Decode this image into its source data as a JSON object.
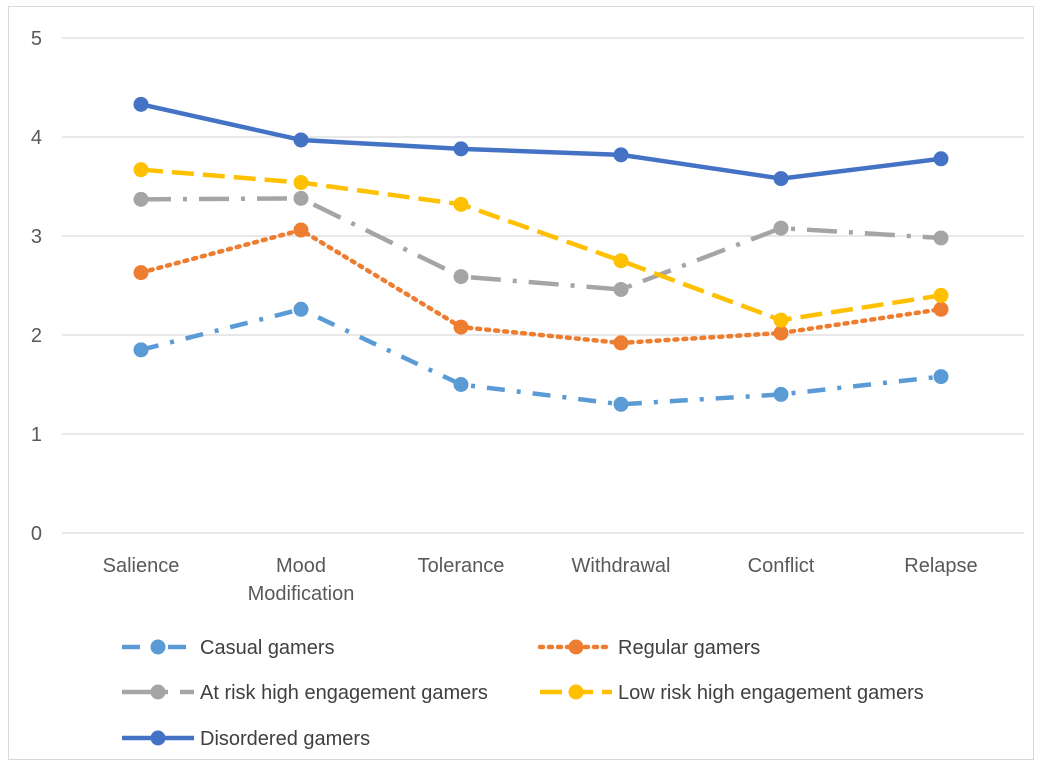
{
  "chart_data": {
    "type": "line",
    "categories": [
      [
        "Salience"
      ],
      [
        "Mood",
        "Modification"
      ],
      [
        "Tolerance"
      ],
      [
        "Withdrawal"
      ],
      [
        "Conflict"
      ],
      [
        "Relapse"
      ]
    ],
    "ylim": [
      0,
      5
    ],
    "yticks": [
      "0",
      "1",
      "2",
      "3",
      "4",
      "5"
    ],
    "grid": true,
    "legend": "bottom",
    "series": [
      {
        "name": "Casual gamers",
        "color": "#5b9bd5",
        "dash": "dash-dot",
        "values": [
          1.85,
          2.26,
          1.5,
          1.3,
          1.4,
          1.58
        ]
      },
      {
        "name": "Regular gamers",
        "color": "#ed7d31",
        "dash": "dot",
        "values": [
          2.63,
          3.06,
          2.08,
          1.92,
          2.02,
          2.26
        ]
      },
      {
        "name": "At risk high engagement gamers",
        "color": "#a5a5a5",
        "dash": "long-dash-dot",
        "values": [
          3.37,
          3.38,
          2.59,
          2.46,
          3.08,
          2.98
        ]
      },
      {
        "name": "Low risk high engagement gamers",
        "color": "#ffc000",
        "dash": "dash",
        "values": [
          3.67,
          3.54,
          3.32,
          2.75,
          2.15,
          2.4
        ]
      },
      {
        "name": "Disordered gamers",
        "color": "#4472c4",
        "dash": "solid",
        "values": [
          4.33,
          3.97,
          3.88,
          3.82,
          3.58,
          3.78
        ]
      }
    ]
  }
}
